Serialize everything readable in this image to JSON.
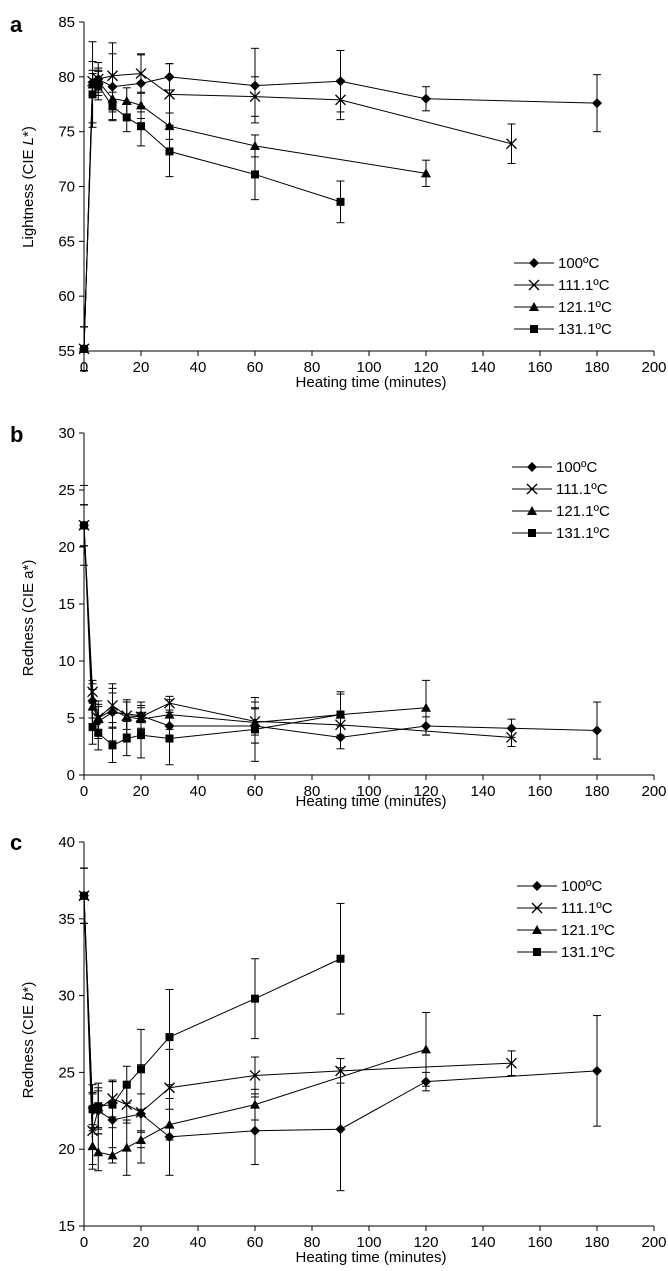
{
  "chart_data": [
    {
      "panel": "a",
      "type": "line",
      "ylabel": "Lightness (CIE L*)",
      "xlabel": "Heating time (minutes)",
      "xlim": [
        0,
        200
      ],
      "xticks": [
        0,
        20,
        40,
        60,
        80,
        100,
        120,
        140,
        160,
        180,
        200
      ],
      "ylim": [
        55,
        85
      ],
      "yticks": [
        55,
        60,
        65,
        70,
        75,
        80,
        85
      ],
      "legend_position": "right-middle",
      "series": [
        {
          "name": "100ºC",
          "marker": "diamond",
          "x": [
            0,
            3,
            5,
            10,
            20,
            30,
            60,
            90,
            120,
            180
          ],
          "y": [
            55.2,
            79.5,
            79.8,
            79.1,
            79.4,
            80.0,
            79.2,
            79.6,
            78.0,
            77.6
          ],
          "err": [
            2.0,
            3.7,
            1.0,
            3.0,
            2.6,
            1.2,
            3.4,
            2.8,
            1.1,
            2.6
          ]
        },
        {
          "name": "111.1ºC",
          "marker": "x",
          "x": [
            0,
            3,
            5,
            10,
            20,
            30,
            60,
            90,
            150
          ],
          "y": [
            55.2,
            79.6,
            79.8,
            80.1,
            80.3,
            78.4,
            78.2,
            77.9,
            73.9
          ],
          "err": [
            2.0,
            1.0,
            1.5,
            3.0,
            1.8,
            2.8,
            1.8,
            1.8,
            1.8
          ]
        },
        {
          "name": "121.1ºC",
          "marker": "triangle",
          "x": [
            0,
            3,
            5,
            10,
            15,
            20,
            30,
            60,
            120
          ],
          "y": [
            55.2,
            79.3,
            79.6,
            78.0,
            77.8,
            77.4,
            75.5,
            73.7,
            71.2
          ],
          "err": [
            2.0,
            1.0,
            1.0,
            1.2,
            1.2,
            1.2,
            1.2,
            1.0,
            1.2
          ]
        },
        {
          "name": "131.1ºC",
          "marker": "square",
          "x": [
            0,
            3,
            5,
            10,
            15,
            20,
            30,
            60,
            90
          ],
          "y": [
            55.2,
            78.4,
            79.2,
            77.3,
            76.3,
            75.5,
            73.2,
            71.1,
            68.6
          ],
          "err": [
            2.0,
            3.0,
            1.3,
            1.3,
            1.3,
            1.8,
            2.3,
            2.3,
            1.9
          ]
        }
      ]
    },
    {
      "panel": "b",
      "type": "line",
      "ylabel": "Redness (CIE a*)",
      "xlabel": "Heating time (minutes)",
      "xlim": [
        0,
        200
      ],
      "xticks": [
        0,
        20,
        40,
        60,
        80,
        100,
        120,
        140,
        160,
        180,
        200
      ],
      "ylim": [
        0,
        30
      ],
      "yticks": [
        0,
        5,
        10,
        15,
        20,
        25,
        30
      ],
      "legend_position": "top-right",
      "series": [
        {
          "name": "100ºC",
          "marker": "diamond",
          "x": [
            0,
            3,
            5,
            10,
            20,
            30,
            60,
            90,
            120,
            150,
            180
          ],
          "y": [
            21.9,
            6.5,
            4.7,
            5.5,
            5.2,
            4.3,
            4.3,
            3.3,
            4.3,
            4.1,
            3.9
          ],
          "err": [
            1.8,
            1.5,
            1.5,
            2.5,
            1.2,
            1.2,
            1.5,
            1.0,
            0.8,
            0.8,
            2.5
          ]
        },
        {
          "name": "111.1ºC",
          "marker": "x",
          "x": [
            0,
            3,
            5,
            10,
            15,
            20,
            30,
            60,
            90,
            150
          ],
          "y": [
            21.9,
            7.3,
            5.0,
            6.1,
            5.2,
            5.1,
            6.3,
            4.7,
            4.4,
            3.3
          ],
          "err": [
            1.8,
            1.0,
            1.0,
            1.5,
            1.2,
            1.0,
            0.6,
            1.2,
            1.2,
            0.8
          ]
        },
        {
          "name": "121.1ºC",
          "marker": "triangle",
          "x": [
            0,
            3,
            5,
            10,
            15,
            20,
            30,
            60,
            90,
            120
          ],
          "y": [
            21.9,
            6.0,
            5.0,
            5.7,
            5.1,
            4.9,
            5.3,
            4.6,
            5.3,
            5.9
          ],
          "err": [
            1.8,
            1.5,
            1.5,
            1.5,
            1.5,
            1.0,
            1.3,
            1.8,
            1.8,
            2.4
          ]
        },
        {
          "name": "131.1ºC",
          "marker": "square",
          "x": [
            0,
            3,
            5,
            10,
            15,
            20,
            30,
            60,
            90
          ],
          "y": [
            21.9,
            4.2,
            3.7,
            2.6,
            3.2,
            3.5,
            3.2,
            4.0,
            5.3
          ],
          "err": [
            3.5,
            1.5,
            1.5,
            1.5,
            1.5,
            2.0,
            2.3,
            2.8,
            2.0
          ]
        }
      ]
    },
    {
      "panel": "c",
      "type": "line",
      "ylabel": "Redness (CIE b*)",
      "xlabel": "Heating time (minutes)",
      "xlim": [
        0,
        200
      ],
      "xticks": [
        0,
        20,
        40,
        60,
        80,
        100,
        120,
        140,
        160,
        180,
        200
      ],
      "ylim": [
        15,
        40
      ],
      "yticks": [
        15,
        20,
        25,
        30,
        35,
        40
      ],
      "legend_position": "top-right",
      "series": [
        {
          "name": "100ºC",
          "marker": "diamond",
          "x": [
            0,
            3,
            5,
            10,
            20,
            30,
            60,
            90,
            120,
            180
          ],
          "y": [
            36.5,
            22.7,
            22.5,
            21.9,
            22.3,
            20.8,
            21.2,
            21.3,
            24.4,
            25.1
          ],
          "err": [
            1.8,
            1.5,
            1.5,
            2.5,
            3.2,
            2.5,
            2.2,
            4.0,
            0.6,
            3.6
          ]
        },
        {
          "name": "111.1ºC",
          "marker": "x",
          "x": [
            0,
            3,
            5,
            10,
            15,
            20,
            30,
            60,
            90,
            150
          ],
          "y": [
            36.5,
            21.2,
            22.6,
            23.3,
            22.9,
            22.4,
            24.0,
            24.8,
            25.1,
            25.6
          ],
          "err": [
            1.8,
            2.5,
            1.2,
            1.2,
            1.2,
            1.2,
            2.5,
            1.2,
            0.8,
            0.8
          ]
        },
        {
          "name": "121.1ºC",
          "marker": "triangle",
          "x": [
            0,
            3,
            5,
            10,
            15,
            20,
            30,
            60,
            120
          ],
          "y": [
            36.5,
            20.2,
            19.8,
            19.6,
            20.1,
            20.6,
            21.6,
            22.9,
            26.5
          ],
          "err": [
            1.8,
            1.2,
            1.2,
            0.5,
            1.8,
            0.5,
            1.0,
            1.0,
            2.4
          ]
        },
        {
          "name": "131.1ºC",
          "marker": "square",
          "x": [
            0,
            3,
            5,
            10,
            15,
            20,
            30,
            60,
            90
          ],
          "y": [
            36.5,
            22.6,
            22.8,
            22.9,
            24.2,
            25.2,
            27.3,
            29.8,
            32.4
          ],
          "err": [
            1.8,
            1.0,
            1.5,
            1.5,
            1.2,
            2.6,
            3.1,
            2.6,
            3.6
          ]
        }
      ]
    }
  ],
  "panels": [
    {
      "letter": "a",
      "ylabel": "Lightness (CIE L*)",
      "xlabel": "Heating time (minutes)"
    },
    {
      "letter": "b",
      "ylabel": "Redness (CIE a*)",
      "xlabel": "Heating time (minutes)"
    },
    {
      "letter": "c",
      "ylabel": "Redness (CIE b*)",
      "xlabel": "Heating time (minutes)"
    }
  ]
}
